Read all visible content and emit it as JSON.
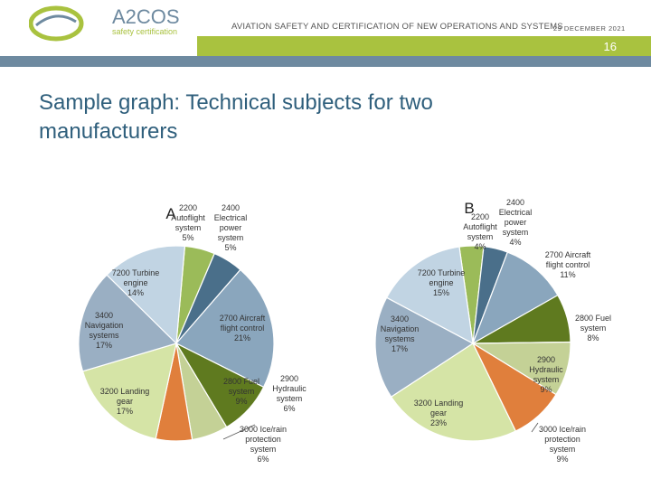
{
  "header": {
    "logo_text": "A2COS",
    "logo_subtitle": "safety certification",
    "title": "AVIATION SAFETY AND CERTIFICATION OF NEW OPERATIONS AND SYSTEMS",
    "date": "29 DECEMBER 2021",
    "page_number": "16"
  },
  "slide": {
    "title": "Sample graph: Technical subjects for two manufacturers"
  },
  "colors": {
    "green_bar": "#a9c23f",
    "blue_bar": "#6e8aa0",
    "title": "#2f5f7c"
  },
  "chart_data": [
    {
      "type": "pie",
      "title": "A",
      "slices": [
        {
          "label": [
            "2200",
            "Autoflight",
            "system",
            "5%"
          ],
          "value": 5,
          "color": "#9bbb59"
        },
        {
          "label": [
            "2400",
            "Electrical",
            "power",
            "system",
            "5%"
          ],
          "value": 5,
          "color": "#4a6f8a"
        },
        {
          "label": [
            "2700 Aircraft",
            "flight control",
            "21%"
          ],
          "value": 21,
          "color": "#8aa6bd"
        },
        {
          "label": [
            "2800 Fuel",
            "system",
            "9%"
          ],
          "value": 9,
          "color": "#5f7a1f"
        },
        {
          "label": [
            "2900",
            "Hydraulic",
            "system",
            "6%"
          ],
          "value": 6,
          "color": "#c4d196"
        },
        {
          "label": [
            "3000 Ice/rain",
            "protection",
            "system",
            "6%"
          ],
          "value": 6,
          "color": "#e07f3c"
        },
        {
          "label": [
            "3200 Landing",
            "gear",
            "17%"
          ],
          "value": 17,
          "color": "#d5e4a6"
        },
        {
          "label": [
            "3400",
            "Navigation",
            "systems",
            "17%"
          ],
          "value": 17,
          "color": "#9aafc3"
        },
        {
          "label": [
            "7200 Turbine",
            "engine",
            "14%"
          ],
          "value": 14,
          "color": "#c1d4e3"
        }
      ]
    },
    {
      "type": "pie",
      "title": "B",
      "slices": [
        {
          "label": [
            "2200",
            "Autoflight",
            "system",
            "4%"
          ],
          "value": 4,
          "color": "#9bbb59"
        },
        {
          "label": [
            "2400",
            "Electrical",
            "power",
            "system",
            "4%"
          ],
          "value": 4,
          "color": "#4a6f8a"
        },
        {
          "label": [
            "2700 Aircraft",
            "flight control",
            "11%"
          ],
          "value": 11,
          "color": "#8aa6bd"
        },
        {
          "label": [
            "2800 Fuel",
            "system",
            "8%"
          ],
          "value": 8,
          "color": "#5f7a1f"
        },
        {
          "label": [
            "2900",
            "Hydraulic",
            "system",
            "9%"
          ],
          "value": 9,
          "color": "#c4d196"
        },
        {
          "label": [
            "3000 Ice/rain",
            "protection",
            "system",
            "9%"
          ],
          "value": 9,
          "color": "#e07f3c"
        },
        {
          "label": [
            "3200 Landing",
            "gear",
            "23%"
          ],
          "value": 23,
          "color": "#d5e4a6"
        },
        {
          "label": [
            "3400",
            "Navigation",
            "systems",
            "17%"
          ],
          "value": 17,
          "color": "#9aafc3"
        },
        {
          "label": [
            "7200 Turbine",
            "engine",
            "15%"
          ],
          "value": 15,
          "color": "#c1d4e3"
        }
      ]
    }
  ]
}
